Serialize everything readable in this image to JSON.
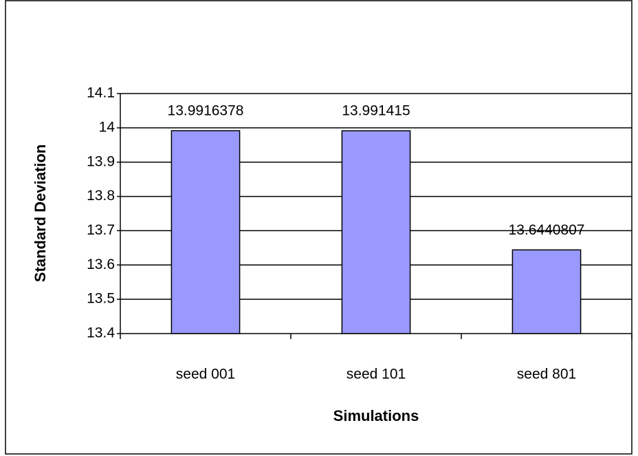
{
  "chart_data": {
    "type": "bar",
    "categories": [
      "seed 001",
      "seed 101",
      "seed 801"
    ],
    "values": [
      13.9916378,
      13.991415,
      13.6440807
    ],
    "color": "#9999ff",
    "xlabel": "Simulations",
    "ylabel": "Standard Deviation",
    "ylim": [
      13.4,
      14.1
    ],
    "yticks": [
      13.4,
      13.5,
      13.6,
      13.7,
      13.8,
      13.9,
      14,
      14.1
    ],
    "grid": true
  }
}
